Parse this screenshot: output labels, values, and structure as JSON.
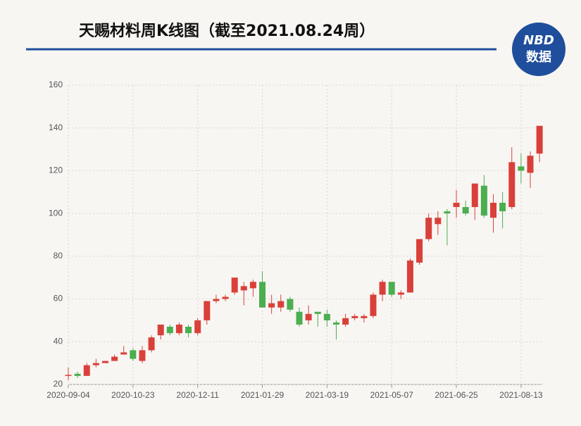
{
  "logo": {
    "line1": "NBD",
    "line2": "数据"
  },
  "chart_data": {
    "type": "candlestick",
    "title": "天赐材料周K线图（截至2021.08.24周）",
    "categories": [
      "2020-09-04",
      null,
      null,
      null,
      null,
      null,
      null,
      "2020-10-23",
      null,
      null,
      null,
      null,
      null,
      null,
      "2020-12-11",
      null,
      null,
      null,
      null,
      null,
      null,
      "2021-01-29",
      null,
      null,
      null,
      null,
      null,
      null,
      "2021-03-19",
      null,
      null,
      null,
      null,
      null,
      null,
      "2021-05-07",
      null,
      null,
      null,
      null,
      null,
      null,
      "2021-06-25",
      null,
      null,
      null,
      null,
      null,
      null,
      "2021-08-13",
      null,
      null
    ],
    "open": [
      24,
      25,
      24,
      29,
      30,
      31,
      34,
      36,
      31,
      36,
      43,
      47,
      44,
      47,
      44,
      50,
      59,
      60,
      63,
      64,
      65,
      68,
      56,
      56,
      60,
      54,
      50,
      54,
      53,
      49,
      48,
      51,
      51,
      52,
      62,
      68,
      62,
      63,
      77,
      88,
      95,
      101,
      103,
      103,
      103,
      113,
      98,
      105,
      103,
      122,
      119,
      128
    ],
    "close": [
      24.5,
      24,
      29,
      30,
      31,
      33,
      35,
      32,
      36,
      42,
      48,
      44,
      48,
      44,
      50,
      59,
      60,
      61,
      70,
      66,
      68,
      56,
      58,
      59,
      55,
      48,
      53,
      53,
      50,
      48,
      51,
      52,
      52,
      62,
      68,
      62,
      63,
      78,
      88,
      98,
      98,
      100,
      105,
      100,
      114,
      99,
      105,
      101,
      124,
      120,
      127,
      141
    ],
    "high": [
      28,
      26,
      30,
      32,
      31,
      34,
      38,
      37,
      38,
      43,
      48,
      48,
      49,
      48,
      51,
      59,
      62,
      62,
      70,
      68,
      69,
      73,
      62,
      62,
      61,
      56,
      57,
      54,
      55,
      50,
      53,
      53,
      53,
      63,
      69,
      68,
      64,
      79,
      88,
      100,
      101,
      102,
      111,
      106,
      114,
      118,
      109,
      110,
      131,
      128,
      129,
      141
    ],
    "low": [
      22,
      23,
      24,
      28,
      30,
      31,
      34,
      31,
      30,
      35,
      41,
      43,
      43,
      42,
      43,
      48,
      58,
      59,
      62,
      57,
      61,
      56,
      53,
      54,
      54,
      47,
      48,
      47,
      47,
      41,
      47,
      50,
      49,
      51,
      59,
      61,
      60,
      63,
      76,
      87,
      90,
      85,
      98,
      99,
      97,
      98,
      91,
      93,
      102,
      114,
      112,
      124
    ],
    "up_color": "#d9403a",
    "down_color": "#4cae4f",
    "ylim": [
      20,
      160
    ],
    "yticks": [
      20,
      40,
      60,
      80,
      100,
      120,
      140,
      160
    ],
    "grid": true
  }
}
